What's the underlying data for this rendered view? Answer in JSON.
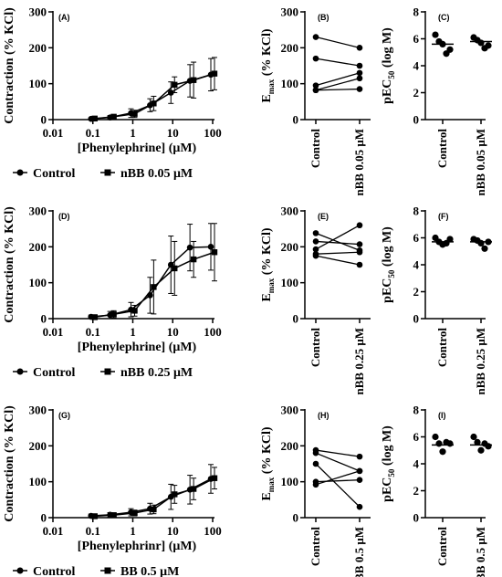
{
  "chart_data": [
    {
      "id": "A",
      "type": "line",
      "title": "(A)",
      "xlabel": "[Phenylephrine] (μM)",
      "ylabel": "Contraction (% KCl)",
      "xscale": "log",
      "xlim": [
        0.01,
        100
      ],
      "ylim": [
        0,
        300
      ],
      "xticks": [
        "0.01",
        "0.1",
        "1",
        "10",
        "100"
      ],
      "yticks": [
        "0",
        "100",
        "200",
        "300"
      ],
      "x": [
        0.1,
        0.3,
        1,
        3,
        10,
        30,
        100
      ],
      "legend_placement": "bottom",
      "series": [
        {
          "name": "Control",
          "marker": "circle",
          "values": [
            2,
            6,
            18,
            40,
            75,
            108,
            125
          ],
          "err": [
            3,
            5,
            12,
            18,
            30,
            45,
            45
          ]
        },
        {
          "name": "nBB 0.05 μM",
          "marker": "square",
          "values": [
            3,
            8,
            16,
            45,
            97,
            110,
            128
          ],
          "err": [
            3,
            5,
            10,
            20,
            22,
            50,
            45
          ]
        }
      ]
    },
    {
      "id": "B",
      "type": "line",
      "title": "(B)",
      "ylabel": "Emax (% KCl)",
      "ylabel_main": "E",
      "ylabel_sub": "max",
      "ylabel_rest": " (% KCl)",
      "ylim": [
        0,
        300
      ],
      "yticks": [
        "0",
        "100",
        "200",
        "300"
      ],
      "categories": [
        "Control",
        "nBB 0.05 μM"
      ],
      "pairs": [
        [
          230,
          200
        ],
        [
          170,
          150
        ],
        [
          95,
          130
        ],
        [
          82,
          115
        ],
        [
          82,
          85
        ]
      ]
    },
    {
      "id": "C",
      "type": "scatter",
      "title": "(C)",
      "ylabel": "pEC50 (log M)",
      "ylabel_main": "pEC",
      "ylabel_sub": "50",
      "ylabel_rest": " (log M)",
      "ylim": [
        0,
        8
      ],
      "yticks": [
        "0",
        "2",
        "4",
        "6",
        "8"
      ],
      "categories": [
        "Control",
        "nBB 0.05 μM"
      ],
      "groups": [
        [
          6.3,
          5.8,
          5.6,
          4.9,
          5.2
        ],
        [
          6.1,
          5.9,
          5.7,
          5.3,
          5.5
        ]
      ],
      "means": [
        5.6,
        5.8
      ]
    },
    {
      "id": "D",
      "type": "line",
      "title": "(D)",
      "xlabel": "[Phenylephrine] (μM)",
      "ylabel": "Contraction (% KCl)",
      "xscale": "log",
      "xlim": [
        0.01,
        100
      ],
      "ylim": [
        0,
        300
      ],
      "xticks": [
        "0.01",
        "0.1",
        "1",
        "10",
        "100"
      ],
      "yticks": [
        "0",
        "100",
        "200",
        "300"
      ],
      "x": [
        0.1,
        0.3,
        1,
        3,
        10,
        30,
        100
      ],
      "legend_placement": "bottom",
      "series": [
        {
          "name": "Control",
          "marker": "circle",
          "values": [
            5,
            10,
            25,
            65,
            150,
            198,
            200
          ],
          "err": [
            5,
            10,
            20,
            50,
            80,
            65,
            65
          ]
        },
        {
          "name": "nBB 0.25 μM",
          "marker": "square",
          "values": [
            4,
            12,
            22,
            88,
            140,
            165,
            185
          ],
          "err": [
            4,
            10,
            15,
            75,
            75,
            50,
            80
          ]
        }
      ]
    },
    {
      "id": "E",
      "type": "line",
      "title": "(E)",
      "ylabel": "Emax (% KCl)",
      "ylabel_main": "E",
      "ylabel_sub": "max",
      "ylabel_rest": " (% KCl)",
      "ylim": [
        0,
        300
      ],
      "yticks": [
        "0",
        "100",
        "200",
        "300"
      ],
      "categories": [
        "Control",
        "nBB 0.25 μM"
      ],
      "pairs": [
        [
          238,
          190
        ],
        [
          215,
          207
        ],
        [
          193,
          260
        ],
        [
          180,
          185
        ],
        [
          175,
          150
        ]
      ]
    },
    {
      "id": "F",
      "type": "scatter",
      "title": "(F)",
      "ylabel": "pEC50 (log M)",
      "ylabel_main": "pEC",
      "ylabel_sub": "50",
      "ylabel_rest": " (log M)",
      "ylim": [
        0,
        8
      ],
      "yticks": [
        "0",
        "2",
        "4",
        "6",
        "8"
      ],
      "categories": [
        "Control",
        "nBB 0.25 μM"
      ],
      "groups": [
        [
          6.0,
          5.7,
          5.5,
          5.6,
          5.9
        ],
        [
          5.9,
          5.8,
          5.6,
          5.2,
          5.7
        ]
      ],
      "means": [
        5.7,
        5.7
      ]
    },
    {
      "id": "G",
      "type": "line",
      "title": "(G)",
      "xlabel": "[Phenylephrinr] (μM)",
      "ylabel": "Contraction (% KCl)",
      "xscale": "log",
      "xlim": [
        0.01,
        100
      ],
      "ylim": [
        0,
        300
      ],
      "xticks": [
        "0.01",
        "0.1",
        "1",
        "10",
        "100"
      ],
      "yticks": [
        "0",
        "100",
        "200",
        "300"
      ],
      "x": [
        0.1,
        0.3,
        1,
        3,
        10,
        30,
        100
      ],
      "legend_placement": "bottom",
      "series": [
        {
          "name": "Control",
          "marker": "circle",
          "values": [
            5,
            8,
            15,
            25,
            58,
            78,
            108
          ],
          "err": [
            5,
            6,
            10,
            15,
            35,
            40,
            40
          ]
        },
        {
          "name": "BB 0.5 μM",
          "marker": "square",
          "values": [
            4,
            7,
            13,
            23,
            65,
            80,
            110
          ],
          "err": [
            4,
            5,
            8,
            12,
            25,
            30,
            30
          ]
        }
      ]
    },
    {
      "id": "H",
      "type": "line",
      "title": "(H)",
      "ylabel": "Emax (% KCl)",
      "ylabel_main": "E",
      "ylabel_sub": "max",
      "ylabel_rest": " (% KCl)",
      "ylim": [
        0,
        300
      ],
      "yticks": [
        "0",
        "100",
        "200",
        "300"
      ],
      "categories": [
        "Control",
        "BB 0.5 μM"
      ],
      "pairs": [
        [
          188,
          170
        ],
        [
          180,
          130
        ],
        [
          150,
          30
        ],
        [
          100,
          105
        ],
        [
          92,
          130
        ]
      ]
    },
    {
      "id": "I",
      "type": "scatter",
      "title": "(I)",
      "ylabel": "pEC50 (log M)",
      "ylabel_main": "pEC",
      "ylabel_sub": "50",
      "ylabel_rest": " (log M)",
      "ylim": [
        0,
        8
      ],
      "yticks": [
        "0",
        "2",
        "4",
        "6",
        "8"
      ],
      "categories": [
        "Control",
        "BB 0.5 μM"
      ],
      "groups": [
        [
          6.0,
          5.5,
          4.9,
          5.6,
          5.5
        ],
        [
          6.0,
          5.6,
          5.0,
          5.5,
          5.3
        ]
      ],
      "means": [
        5.4,
        5.4
      ]
    }
  ]
}
